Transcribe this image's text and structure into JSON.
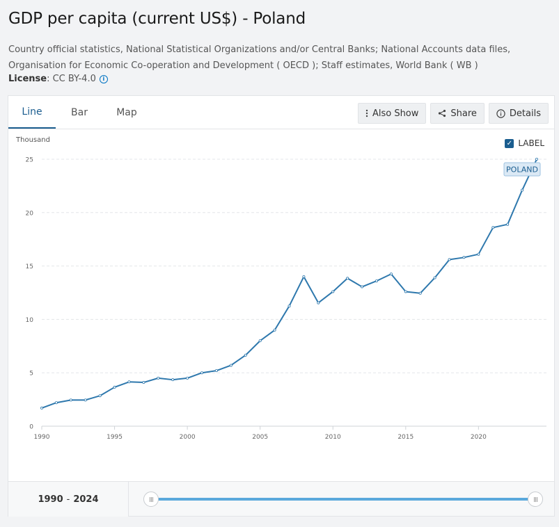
{
  "page": {
    "title": "GDP per capita (current US$) - Poland",
    "source": "Country official statistics, National Statistical Organizations and/or Central Banks; National Accounts data files, Organisation for Economic Co-operation and Development ( OECD ); Staff estimates, World Bank ( WB )",
    "license_label": "License",
    "license_value": ": CC BY-4.0"
  },
  "tabs": [
    "Line",
    "Bar",
    "Map"
  ],
  "actions": {
    "also_show": "Also Show",
    "share": "Share",
    "details": "Details"
  },
  "label_toggle": {
    "text": "LABEL",
    "checked": true
  },
  "range": {
    "start": "1990",
    "separator": "-",
    "end": "2024"
  },
  "colors": {
    "line": "#2e78ad",
    "accent": "#1a5d8f",
    "slider": "#5aa9dc"
  },
  "chart_data": {
    "type": "line",
    "title": "GDP per capita (current US$) - Poland",
    "ylabel": "Thousand",
    "xlabel": "",
    "ylim": [
      0,
      25
    ],
    "xlim": [
      1990,
      2024
    ],
    "yticks": [
      0,
      5,
      10,
      15,
      20,
      25
    ],
    "xticks": [
      1990,
      1995,
      2000,
      2005,
      2010,
      2015,
      2020
    ],
    "grid": true,
    "series": [
      {
        "name": "POLAND",
        "x": [
          1990,
          1991,
          1992,
          1993,
          1994,
          1995,
          1996,
          1997,
          1998,
          1999,
          2000,
          2001,
          2002,
          2003,
          2004,
          2005,
          2006,
          2007,
          2008,
          2009,
          2010,
          2011,
          2012,
          2013,
          2014,
          2015,
          2016,
          2017,
          2018,
          2019,
          2020,
          2021,
          2022,
          2023,
          2024
        ],
        "values": [
          1.7,
          2.2,
          2.45,
          2.45,
          2.85,
          3.65,
          4.15,
          4.1,
          4.5,
          4.35,
          4.5,
          5.0,
          5.2,
          5.7,
          6.65,
          8.0,
          9.0,
          11.25,
          14.0,
          11.55,
          12.6,
          13.85,
          13.05,
          13.6,
          14.25,
          12.6,
          12.45,
          13.9,
          15.6,
          15.8,
          16.1,
          18.6,
          18.9,
          22.1,
          25.0
        ]
      }
    ]
  }
}
